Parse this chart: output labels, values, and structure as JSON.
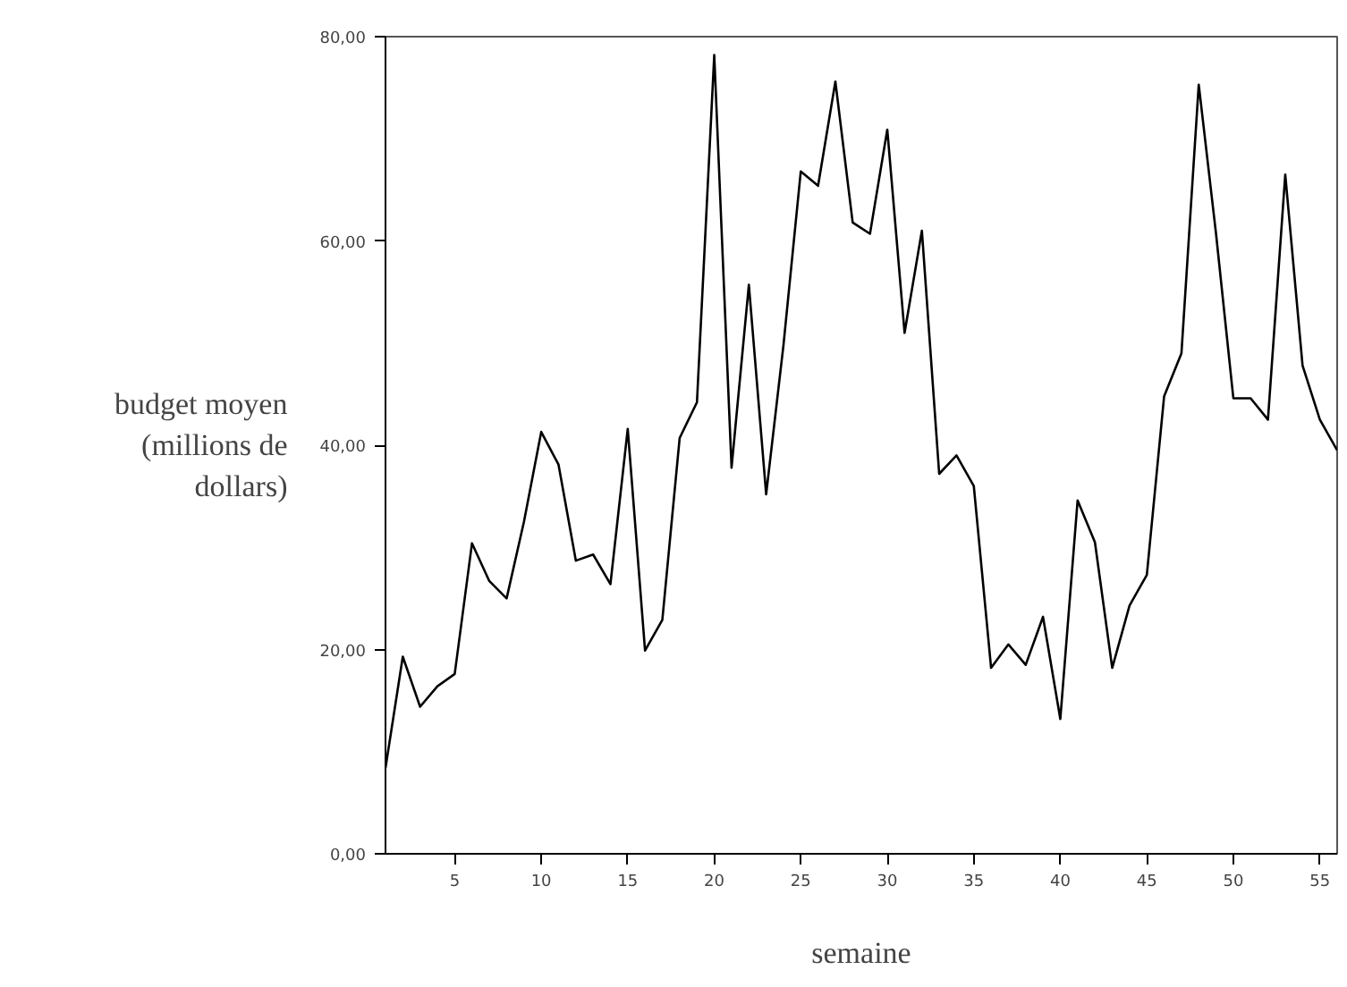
{
  "chart_data": {
    "type": "line",
    "ylabel": "budget moyen\n(millions de\ndollars)",
    "xlabel": "semaine",
    "x": [
      1,
      2,
      3,
      4,
      5,
      6,
      7,
      8,
      9,
      10,
      11,
      12,
      13,
      14,
      15,
      16,
      17,
      18,
      19,
      20,
      21,
      22,
      23,
      24,
      25,
      26,
      27,
      28,
      29,
      30,
      31,
      32,
      33,
      34,
      35,
      36,
      37,
      38,
      39,
      40,
      41,
      42,
      43,
      44,
      45,
      46,
      47,
      48,
      49,
      50,
      51,
      52,
      53,
      54,
      55,
      56
    ],
    "series": [
      {
        "color": "#000000",
        "values": [
          8.4,
          19.3,
          14.4,
          16.4,
          17.6,
          30.4,
          26.7,
          25.0,
          32.5,
          41.3,
          38.1,
          28.7,
          29.3,
          26.4,
          41.6,
          19.9,
          22.9,
          40.7,
          44.2,
          78.2,
          37.8,
          55.7,
          35.2,
          49.8,
          66.8,
          65.4,
          75.6,
          61.8,
          60.7,
          70.9,
          51.0,
          61.0,
          37.2,
          39.0,
          36.0,
          18.2,
          20.5,
          18.5,
          23.2,
          13.2,
          34.6,
          30.5,
          18.2,
          24.3,
          27.3,
          44.8,
          49.0,
          75.3,
          60.7,
          44.6,
          44.6,
          42.5,
          66.5,
          47.8,
          42.5,
          39.5
        ]
      }
    ],
    "xlim": [
      1,
      56
    ],
    "ylim": [
      0,
      80
    ],
    "xticks": [
      5,
      10,
      15,
      20,
      25,
      30,
      35,
      40,
      45,
      50,
      55
    ],
    "yticks": [
      {
        "value": 0,
        "label": "0,00"
      },
      {
        "value": 20,
        "label": "20,00"
      },
      {
        "value": 40,
        "label": "40,00"
      },
      {
        "value": 60,
        "label": "60,00"
      },
      {
        "value": 80,
        "label": "80,00"
      }
    ],
    "grid": false,
    "marker": "none",
    "line_style": "solid"
  }
}
